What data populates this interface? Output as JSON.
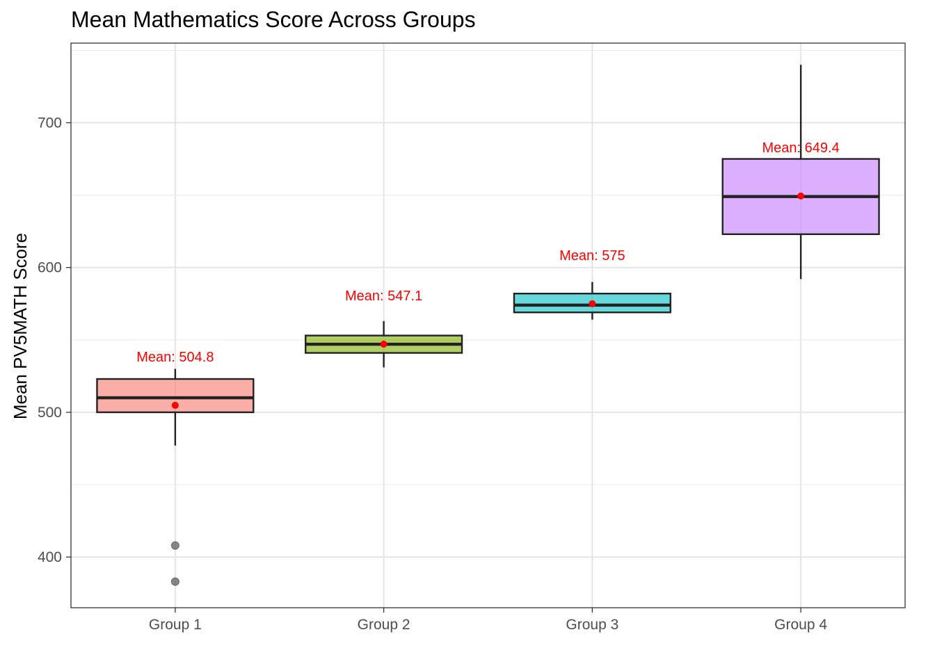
{
  "chart_data": {
    "type": "box",
    "title": "Mean Mathematics Score Across Groups",
    "xlabel": "",
    "ylabel": "Mean PV5MATH Score",
    "ylim": [
      365,
      755
    ],
    "yticks": [
      400,
      500,
      600,
      700
    ],
    "grid": true,
    "legend": "none",
    "categories": [
      "Group 1",
      "Group 2",
      "Group 3",
      "Group 4"
    ],
    "series": [
      {
        "category": "Group 1",
        "whisker_low": 477,
        "q1": 500,
        "median": 510,
        "q3": 523,
        "whisker_high": 530,
        "mean": 504.8,
        "mean_label": "Mean: 504.8",
        "outliers": [
          408,
          383
        ],
        "color": "#f8766d"
      },
      {
        "category": "Group 2",
        "whisker_low": 531,
        "q1": 541,
        "median": 547,
        "q3": 553,
        "whisker_high": 563,
        "mean": 547.1,
        "mean_label": "Mean: 547.1",
        "outliers": [],
        "color": "#7cae00"
      },
      {
        "category": "Group 3",
        "whisker_low": 564,
        "q1": 569,
        "median": 574,
        "q3": 582,
        "whisker_high": 590,
        "mean": 575,
        "mean_label": "Mean: 575",
        "outliers": [],
        "color": "#00bfc4"
      },
      {
        "category": "Group 4",
        "whisker_low": 592,
        "q1": 623,
        "median": 649,
        "q3": 675,
        "whisker_high": 740,
        "mean": 649.4,
        "mean_label": "Mean: 649.4",
        "outliers": [],
        "color": "#c77cff"
      }
    ],
    "mean_color": "#ff0000"
  }
}
